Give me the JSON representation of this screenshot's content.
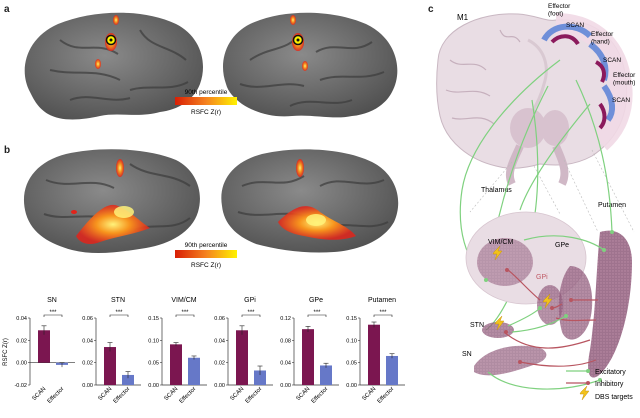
{
  "panels": {
    "a": "a",
    "b": "b",
    "c": "c"
  },
  "colorbar_a": {
    "label_top": "90th percentile",
    "label_bottom": "RSFC Z(r)"
  },
  "colorbar_b": {
    "label_top": "90th percentile",
    "label_bottom": "RSFC Z(r)"
  },
  "colors": {
    "scan": "#7b1650",
    "effector": "#6678c8",
    "excitatory": "#7fd17f",
    "inhibitory": "#b85560",
    "dbs": "#f2c21b",
    "brain_gray": "#707070"
  },
  "chart_data": [
    {
      "type": "bar",
      "title": "SN",
      "categories": [
        "SCAN",
        "Effector"
      ],
      "values": [
        0.029,
        -0.002
      ],
      "errors": [
        0.004,
        0.002
      ],
      "yticks": [
        "0.04",
        "0.02",
        "0.00",
        "-0.02"
      ],
      "ylim": [
        -0.02,
        0.04
      ],
      "ylabel": "RSFC Z(r)",
      "significance": "***"
    },
    {
      "type": "bar",
      "title": "STN",
      "categories": [
        "SCAN",
        "Effector"
      ],
      "values": [
        0.034,
        0.009
      ],
      "errors": [
        0.004,
        0.003
      ],
      "yticks": [
        "0.06",
        "0.04",
        "0.02",
        "0.00"
      ],
      "ylim": [
        0,
        0.06
      ],
      "significance": "***"
    },
    {
      "type": "bar",
      "title": "VIM/CM",
      "categories": [
        "SCAN",
        "Effector"
      ],
      "values": [
        0.091,
        0.061
      ],
      "errors": [
        0.004,
        0.004
      ],
      "yticks": [
        "0.15",
        "0.10",
        "0.05",
        "0.00"
      ],
      "ylim": [
        0,
        0.15
      ],
      "significance": "***"
    },
    {
      "type": "bar",
      "title": "GPi",
      "categories": [
        "SCAN",
        "Effector"
      ],
      "values": [
        0.049,
        0.013
      ],
      "errors": [
        0.004,
        0.004
      ],
      "yticks": [
        "0.06",
        "0.04",
        "0.02",
        "0.00"
      ],
      "ylim": [
        0,
        0.06
      ],
      "significance": "***"
    },
    {
      "type": "bar",
      "title": "GPe",
      "categories": [
        "SCAN",
        "Effector"
      ],
      "values": [
        0.1,
        0.035
      ],
      "errors": [
        0.005,
        0.004
      ],
      "yticks": [
        "0.12",
        "0.08",
        "0.04",
        "0.00"
      ],
      "ylim": [
        0,
        0.12
      ],
      "significance": "***"
    },
    {
      "type": "bar",
      "title": "Putamen",
      "categories": [
        "SCAN",
        "Effector"
      ],
      "values": [
        0.135,
        0.065
      ],
      "errors": [
        0.006,
        0.005
      ],
      "yticks": [
        "0.15",
        "0.10",
        "0.05",
        "0.00"
      ],
      "ylim": [
        0,
        0.15
      ],
      "significance": "***"
    }
  ],
  "diagram": {
    "m1": "M1",
    "effector_foot": "Effector\n(foot)",
    "scan1": "SCAN",
    "effector_hand": "Effector\n(hand)",
    "scan2": "SCAN",
    "effector_mouth": "Effector\n(mouth)",
    "scan3": "SCAN",
    "thalamus": "Thalamus",
    "putamen": "Putamen",
    "vim_cm": "VIM/CM",
    "gpe": "GPe",
    "gpi": "GPi",
    "stn": "STN",
    "sn": "SN",
    "legend": {
      "excitatory": "Excitatory",
      "inhibitory": "Inhibitory",
      "dbs": "DBS targets"
    }
  }
}
